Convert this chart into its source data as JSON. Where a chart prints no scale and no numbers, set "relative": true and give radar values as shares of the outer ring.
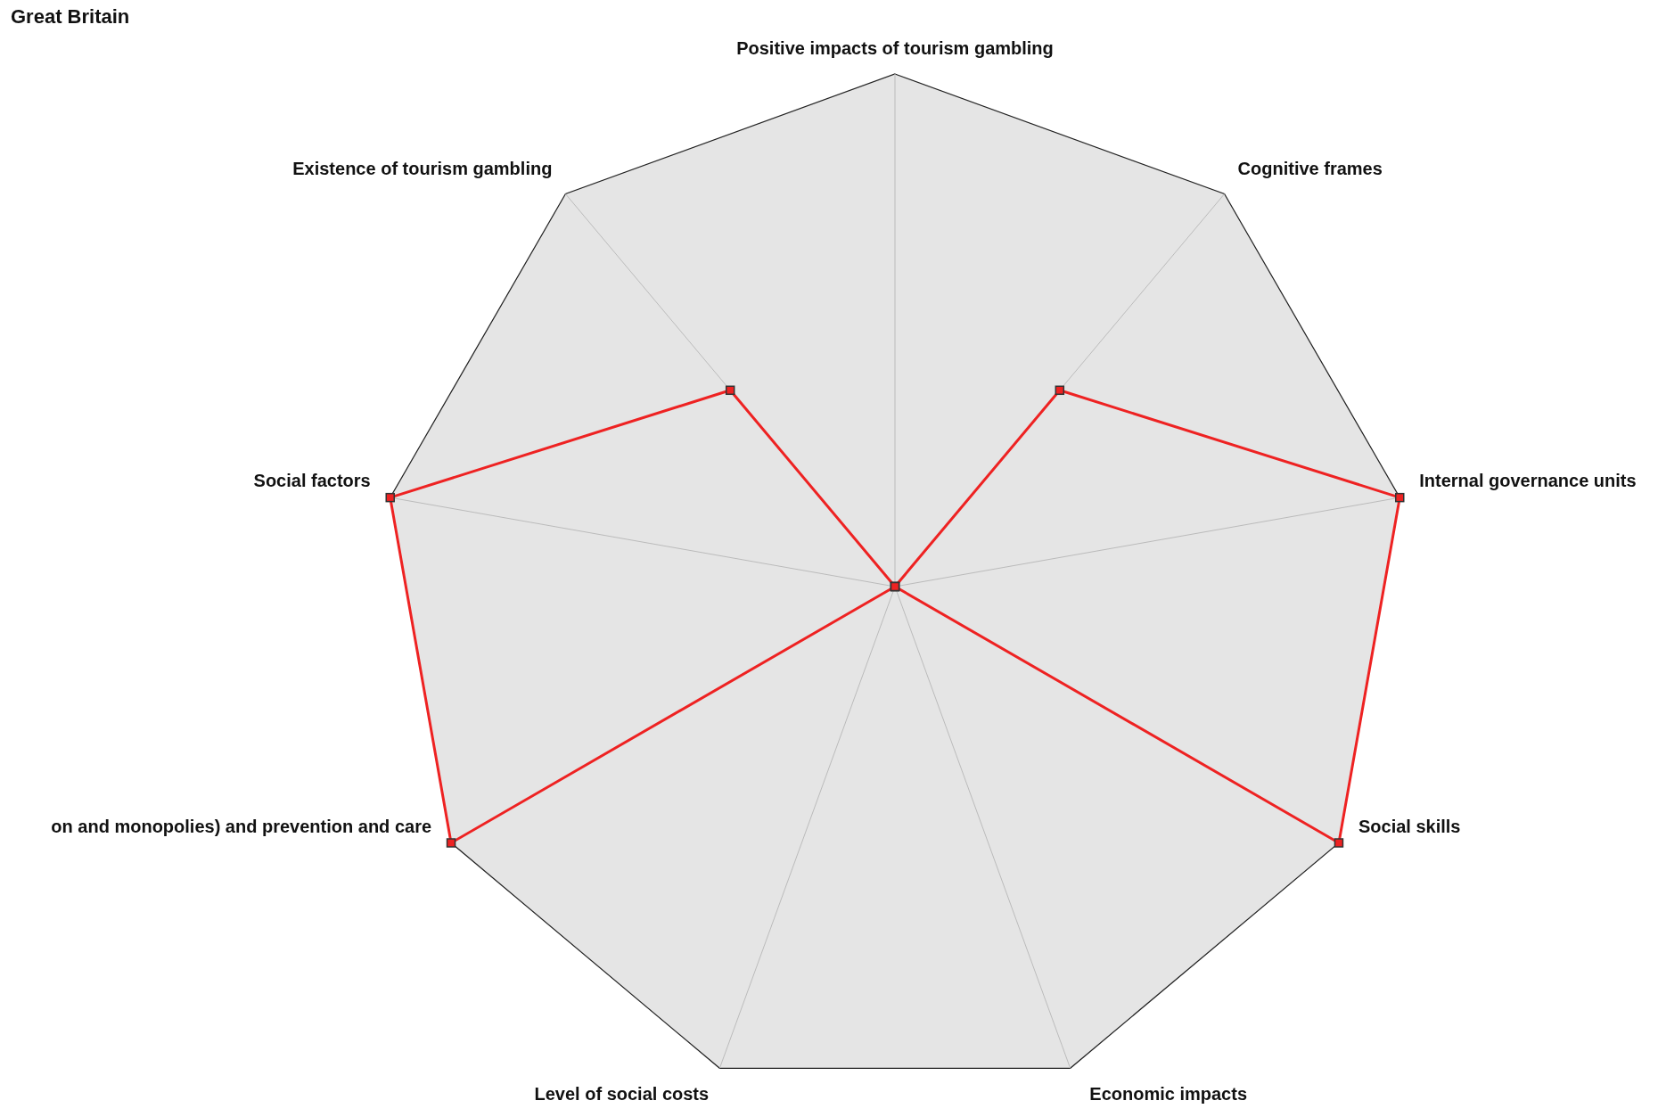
{
  "chart_data": {
    "type": "radar",
    "title": "Great Britain",
    "relative": true,
    "marker": "square",
    "categories": [
      "Positive impacts of tourism gambling",
      "Cognitive frames",
      "Internal governance units",
      "Social skills",
      "Economic impacts",
      "Level of social costs",
      "on and monopolies) and prevention and care",
      "Social factors",
      "Existence of tourism gambling"
    ],
    "series": [
      {
        "color": "#ee2222",
        "values": [
          0,
          0.5,
          1,
          1,
          0,
          0,
          1,
          1,
          0.5
        ]
      }
    ]
  }
}
